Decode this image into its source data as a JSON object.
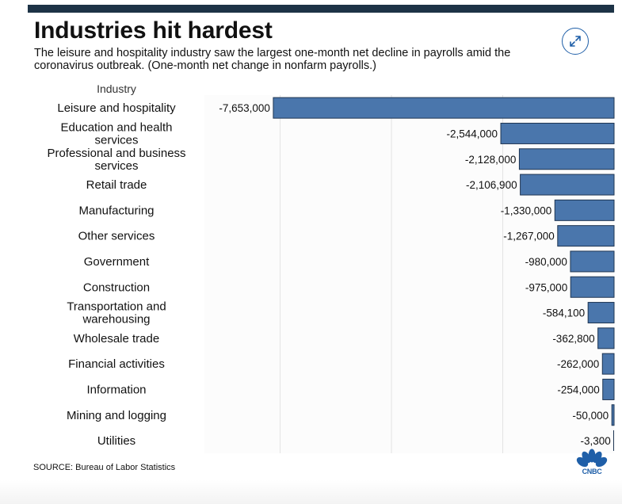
{
  "header": {
    "title": "Industries hit hardest",
    "subtitle": "The leisure and hospitality industry saw the largest one-month net decline in payrolls amid the coronavirus outbreak. (One-month net change in nonfarm payrolls.)"
  },
  "footer": {
    "source": "SOURCE: Bureau of Labor Statistics",
    "logo_text": "CNBC"
  },
  "icons": {
    "expand": "expand-icon",
    "logo": "cnbc-peacock-icon"
  },
  "colors": {
    "bar": "#4a76ac",
    "bar_stroke": "#1e3552",
    "grid": "#e3e3e3",
    "plot_bg": "#fcfcfc",
    "brand": "#1f5fa8"
  },
  "chart_data": {
    "type": "bar",
    "orientation": "horizontal",
    "title": "Industries hit hardest",
    "category_header": "Industry",
    "categories": [
      [
        "Leisure and hospitality"
      ],
      [
        "Education and health",
        "services"
      ],
      [
        "Professional and business",
        "services"
      ],
      [
        "Retail trade"
      ],
      [
        "Manufacturing"
      ],
      [
        "Other services"
      ],
      [
        "Government"
      ],
      [
        "Construction"
      ],
      [
        "Transportation and",
        "warehousing"
      ],
      [
        "Wholesale trade"
      ],
      [
        "Financial activities"
      ],
      [
        "Information"
      ],
      [
        "Mining and logging"
      ],
      [
        "Utilities"
      ]
    ],
    "values": [
      -7653000,
      -2544000,
      -2128000,
      -2106900,
      -1330000,
      -1267000,
      -980000,
      -975000,
      -584100,
      -362800,
      -262000,
      -254000,
      -50000,
      -3300
    ],
    "labels": [
      "-7,653,000",
      "-2,544,000",
      "-2,128,000",
      "-2,106,900",
      "-1,330,000",
      "-1,267,000",
      "-980,000",
      "-975,000",
      "-584,100",
      "-362,800",
      "-262,000",
      "-254,000",
      "-50,000",
      "-3,300"
    ],
    "xlim": [
      -9200000,
      0
    ],
    "gridlines": [
      -7500000,
      -5000000,
      -2500000
    ],
    "legend": "none"
  }
}
